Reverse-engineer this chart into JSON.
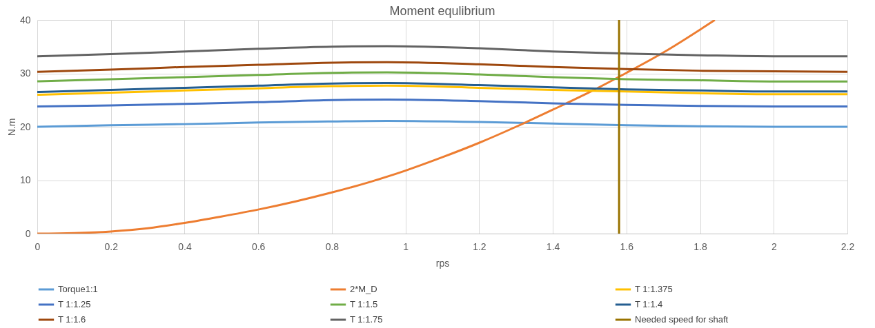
{
  "chart_data": {
    "type": "line",
    "title": "Moment equlibrium",
    "xlabel": "rps",
    "ylabel": "N.m",
    "xlim": [
      0,
      2.2
    ],
    "xticks": [
      0,
      0.2,
      0.4,
      0.6,
      0.8,
      1,
      1.2,
      1.4,
      1.6,
      1.8,
      2,
      2.2
    ],
    "ylim": [
      0,
      40
    ],
    "yticks": [
      0,
      10,
      20,
      30,
      40
    ],
    "grid": true,
    "legend": "bottom",
    "marker": "none",
    "line_style": "solid",
    "x": [
      0,
      0.2,
      0.4,
      0.6,
      0.8,
      0.95,
      1.2,
      1.4,
      1.6,
      1.8,
      2.0,
      2.2
    ],
    "series": [
      {
        "name": "Torque1:1",
        "color": "#5b9bd5",
        "values": [
          20.0,
          20.3,
          20.5,
          20.8,
          21.0,
          21.1,
          20.9,
          20.6,
          20.3,
          20.1,
          20.0,
          20.0
        ]
      },
      {
        "name": "2*M_D",
        "color": "#ed7d31",
        "x": [
          0,
          0.1,
          0.2,
          0.3,
          0.4,
          0.5,
          0.6,
          0.7,
          0.8,
          0.9,
          1.0,
          1.1,
          1.2,
          1.3,
          1.4,
          1.5,
          1.6,
          1.7,
          1.84
        ],
        "values": [
          0,
          0.1,
          0.4,
          1.0,
          2.0,
          3.2,
          4.5,
          6.0,
          7.7,
          9.6,
          11.8,
          14.3,
          17.0,
          20.0,
          23.2,
          26.5,
          30.1,
          33.9,
          40
        ]
      },
      {
        "name": "T 1:1.375",
        "color": "#ffc000",
        "values": [
          26.0,
          26.4,
          26.8,
          27.2,
          27.6,
          27.7,
          27.3,
          26.9,
          26.6,
          26.3,
          26.1,
          26.1
        ]
      },
      {
        "name": "T 1:1.25",
        "color": "#4472c4",
        "values": [
          23.8,
          24.0,
          24.3,
          24.6,
          25.0,
          25.1,
          24.8,
          24.4,
          24.1,
          23.9,
          23.8,
          23.8
        ]
      },
      {
        "name": "T 1:1.5",
        "color": "#70ad47",
        "values": [
          28.5,
          28.9,
          29.3,
          29.7,
          30.1,
          30.2,
          29.8,
          29.3,
          28.9,
          28.7,
          28.5,
          28.5
        ]
      },
      {
        "name": "T 1:1.4",
        "color": "#255e91",
        "values": [
          26.5,
          26.9,
          27.3,
          27.7,
          28.1,
          28.2,
          27.8,
          27.4,
          27.0,
          26.8,
          26.6,
          26.6
        ]
      },
      {
        "name": "T 1:1.6",
        "color": "#9e480e",
        "values": [
          30.3,
          30.7,
          31.2,
          31.6,
          32.0,
          32.1,
          31.7,
          31.2,
          30.8,
          30.5,
          30.4,
          30.3
        ]
      },
      {
        "name": "T 1:1.75",
        "color": "#636363",
        "values": [
          33.2,
          33.6,
          34.1,
          34.6,
          35.0,
          35.1,
          34.7,
          34.1,
          33.7,
          33.4,
          33.2,
          33.2
        ]
      },
      {
        "name": "Needed speed for shaft",
        "color": "#997300",
        "x": [
          1.58,
          1.58
        ],
        "values": [
          0,
          40
        ]
      }
    ]
  }
}
